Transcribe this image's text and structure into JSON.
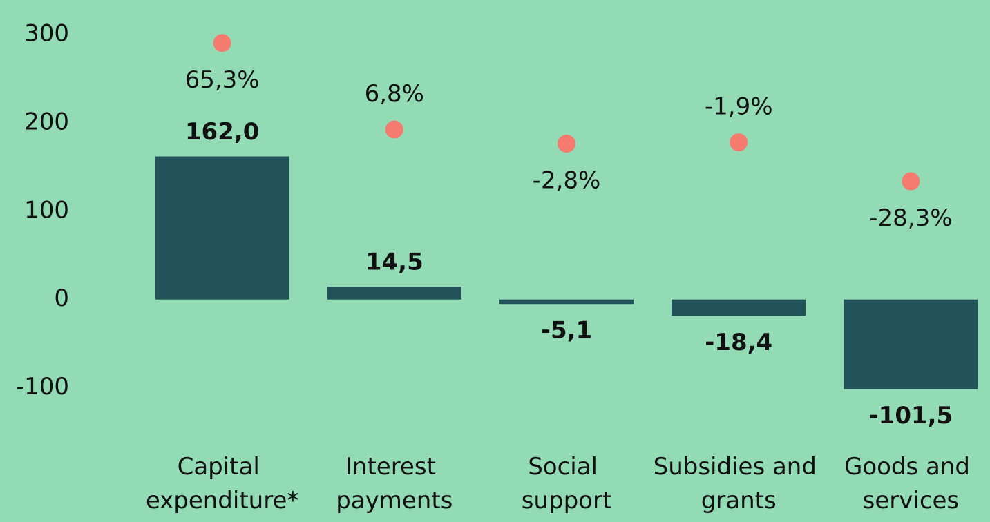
{
  "chart_data": {
    "type": "bar",
    "categories": [
      "Capital expenditure*",
      "Interest payments",
      "Social support",
      "Subsidies and grants",
      "Goods and services"
    ],
    "series": [
      {
        "type": "bar",
        "color": "#22525a",
        "values": [
          162.0,
          14.5,
          -5.1,
          -18.4,
          -101.5
        ],
        "value_labels": [
          "162,0",
          "14,5",
          "-5,1",
          "-18,4",
          "-101,5"
        ]
      },
      {
        "type": "scatter",
        "axis": "y2",
        "color": "#f57b6e",
        "values": [
          65.3,
          6.8,
          -2.8,
          -1.9,
          -28.3
        ],
        "value_labels": [
          "65,3%",
          "6,8%",
          "-2,8%",
          "-1,9%",
          "-28,3%"
        ]
      }
    ],
    "ylim": [
      -130,
      320
    ],
    "yticks": [
      -100,
      0,
      100,
      200,
      300
    ],
    "y2lim": [
      -186,
      83
    ]
  }
}
